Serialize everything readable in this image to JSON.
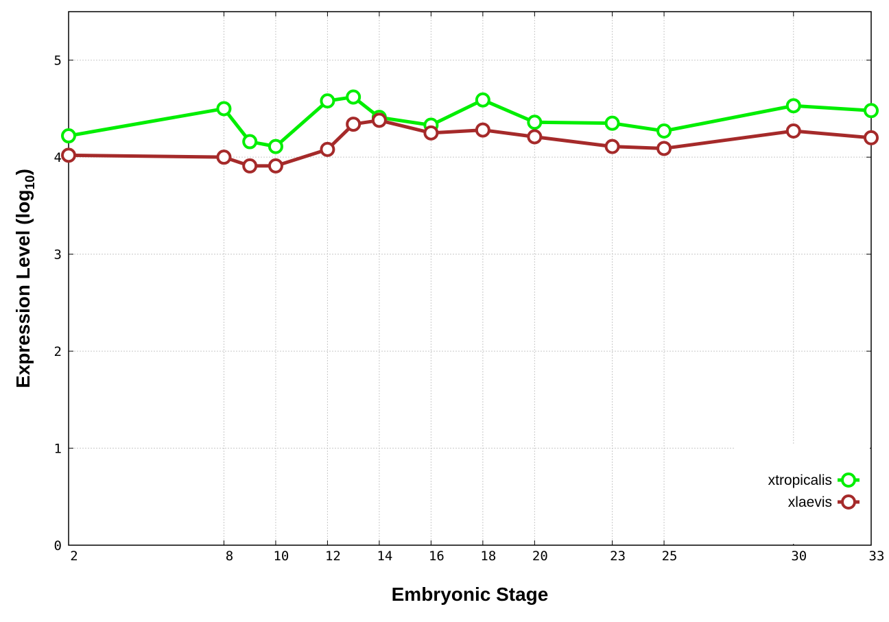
{
  "chart_data": {
    "type": "line",
    "xlabel": "Embryonic Stage",
    "ylabel_main": "Expression Level (log",
    "ylabel_sub": "10",
    "ylabel_close": ")",
    "xlim": [
      2,
      33
    ],
    "ylim": [
      0,
      5.5
    ],
    "x_ticks": [
      2,
      8,
      10,
      12,
      14,
      16,
      18,
      20,
      23,
      25,
      30,
      33
    ],
    "x_tick_labels": [
      "2",
      "8",
      "10",
      "12",
      "14",
      "16",
      "18",
      "20",
      "23",
      "25",
      "30",
      "33"
    ],
    "y_ticks": [
      0,
      1,
      2,
      3,
      4,
      5
    ],
    "y_tick_labels": [
      "0",
      "1",
      "2",
      "3",
      "4",
      "5"
    ],
    "grid": true,
    "legend_position": "bottom-right",
    "x": [
      2,
      8,
      9,
      10,
      12,
      13,
      14,
      16,
      18,
      20,
      23,
      25,
      30,
      33
    ],
    "series": [
      {
        "name": "xtropicalis",
        "color": "#00ee00",
        "values": [
          4.22,
          4.5,
          4.16,
          4.11,
          4.58,
          4.62,
          4.41,
          4.33,
          4.59,
          4.36,
          4.35,
          4.27,
          4.53,
          4.48
        ]
      },
      {
        "name": "xlaevis",
        "color": "#a52a2a",
        "values": [
          4.02,
          4.0,
          3.91,
          3.91,
          4.08,
          4.34,
          4.38,
          4.25,
          4.28,
          4.21,
          4.11,
          4.09,
          4.27,
          4.2
        ]
      }
    ]
  }
}
